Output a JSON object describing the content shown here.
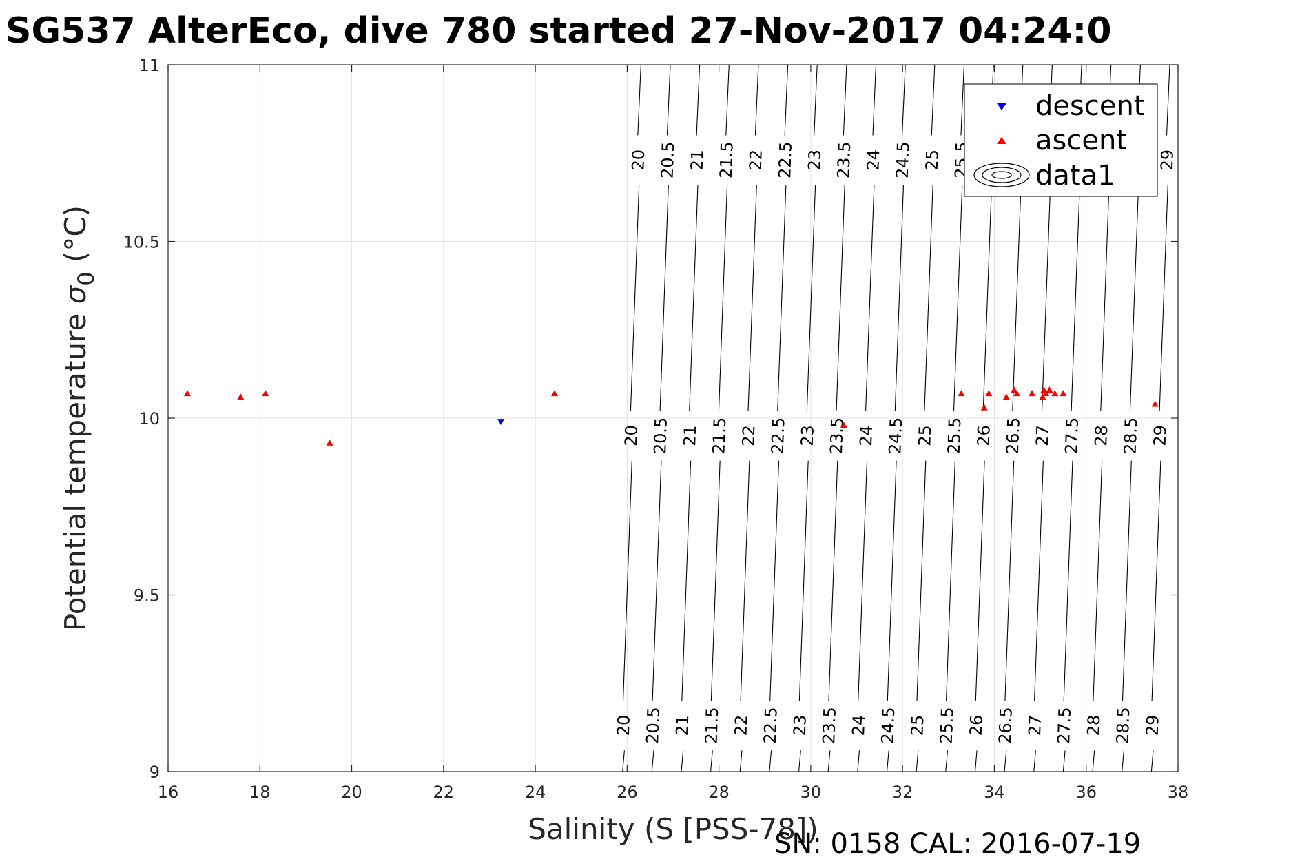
{
  "chart_data": {
    "type": "scatter",
    "title": "SG537 AlterEco, dive 780 started 27-Nov-2017 04:24:0",
    "xlabel": "Salinity (S [PSS-78])",
    "ylabel_main": "Potential temperature ",
    "ylabel_symbol": "σ",
    "ylabel_subscript": "0",
    "ylabel_unit": " (°C)",
    "xlim": [
      16,
      38
    ],
    "ylim": [
      9,
      11
    ],
    "xticks": [
      "16",
      "18",
      "20",
      "22",
      "24",
      "26",
      "28",
      "30",
      "32",
      "34",
      "36",
      "38"
    ],
    "yticks": [
      "9",
      "9.5",
      "10",
      "10.5",
      "11"
    ],
    "grid": true,
    "legend_position": "top-right",
    "series": [
      {
        "name": "descent",
        "marker": "triangle-down",
        "color": "#0000ff",
        "points": [
          [
            23.25,
            9.99
          ]
        ]
      },
      {
        "name": "ascent",
        "marker": "triangle-up",
        "color": "#ff0000",
        "points": [
          [
            16.42,
            10.07
          ],
          [
            17.58,
            10.06
          ],
          [
            18.12,
            10.07
          ],
          [
            19.52,
            9.93
          ],
          [
            24.42,
            10.07
          ],
          [
            30.72,
            9.98
          ],
          [
            33.28,
            10.07
          ],
          [
            33.78,
            10.03
          ],
          [
            33.88,
            10.07
          ],
          [
            34.26,
            10.06
          ],
          [
            34.43,
            10.08
          ],
          [
            34.49,
            10.07
          ],
          [
            34.82,
            10.07
          ],
          [
            35.05,
            10.06
          ],
          [
            35.08,
            10.08
          ],
          [
            35.12,
            10.07
          ],
          [
            35.2,
            10.08
          ],
          [
            35.32,
            10.07
          ],
          [
            35.5,
            10.07
          ],
          [
            37.5,
            10.04
          ]
        ]
      },
      {
        "name": "data1",
        "marker": "contour",
        "color": "#000000"
      }
    ],
    "contours": {
      "levels": [
        "20",
        "20.5",
        "21",
        "21.5",
        "22",
        "22.5",
        "23",
        "23.5",
        "24",
        "24.5",
        "25",
        "25.5",
        "26",
        "26.5",
        "27",
        "27.5",
        "28",
        "28.5",
        "29"
      ],
      "salinity_at_t9": [
        25.9,
        26.54,
        27.18,
        27.82,
        28.46,
        29.1,
        29.74,
        30.38,
        31.02,
        31.66,
        32.3,
        32.94,
        33.58,
        34.22,
        34.86,
        35.5,
        36.14,
        36.78,
        37.42
      ],
      "salinity_at_t11": [
        26.3,
        26.94,
        27.58,
        28.22,
        28.86,
        29.5,
        30.14,
        30.78,
        31.42,
        32.06,
        32.7,
        33.34,
        33.98,
        34.62,
        35.26,
        35.9,
        36.54,
        37.18,
        37.82
      ],
      "label_rows_temp": [
        9.13,
        9.95,
        10.73
      ]
    }
  },
  "footer": {
    "text": "SN: 0158  CAL: 2016-07-19"
  }
}
